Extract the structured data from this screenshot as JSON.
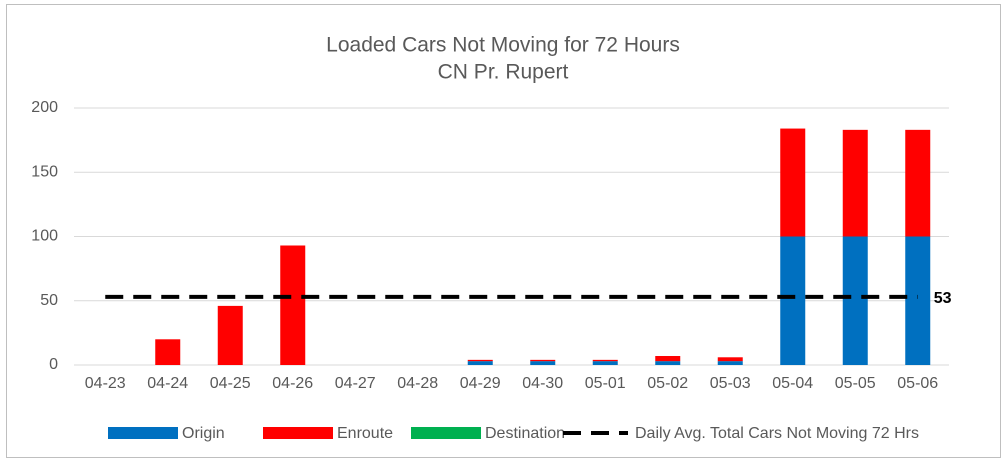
{
  "chart_data": {
    "type": "bar",
    "title": "Loaded Cars Not Moving for 72 Hours",
    "subtitle": "CN Pr. Rupert",
    "stacked": true,
    "categories": [
      "04-23",
      "04-24",
      "04-25",
      "04-26",
      "04-27",
      "04-28",
      "04-29",
      "04-30",
      "05-01",
      "05-02",
      "05-03",
      "05-04",
      "05-05",
      "05-06"
    ],
    "series": [
      {
        "name": "Origin",
        "color": "#0070c0",
        "values": [
          0,
          0,
          0,
          0,
          0,
          0,
          3,
          3,
          3,
          3,
          3,
          100,
          100,
          100
        ]
      },
      {
        "name": "Enroute",
        "color": "#ff0000",
        "values": [
          0,
          20,
          46,
          93,
          0,
          0,
          1,
          1,
          1,
          4,
          3,
          84,
          83,
          83
        ]
      },
      {
        "name": "Destination",
        "color": "#00b050",
        "values": [
          0,
          0,
          0,
          0,
          0,
          0,
          0,
          0,
          0,
          0,
          0,
          0,
          0,
          0
        ]
      },
      {
        "name": "Daily Avg. Total Cars Not Moving 72 Hrs",
        "type": "line",
        "color": "#000000",
        "dashed": true,
        "values": [
          53,
          53,
          53,
          53,
          53,
          53,
          53,
          53,
          53,
          53,
          53,
          53,
          53,
          53
        ]
      }
    ],
    "ylim": [
      0,
      200
    ],
    "yticks": [
      0,
      50,
      100,
      150,
      200
    ],
    "grid": true,
    "legend": "bottom"
  }
}
